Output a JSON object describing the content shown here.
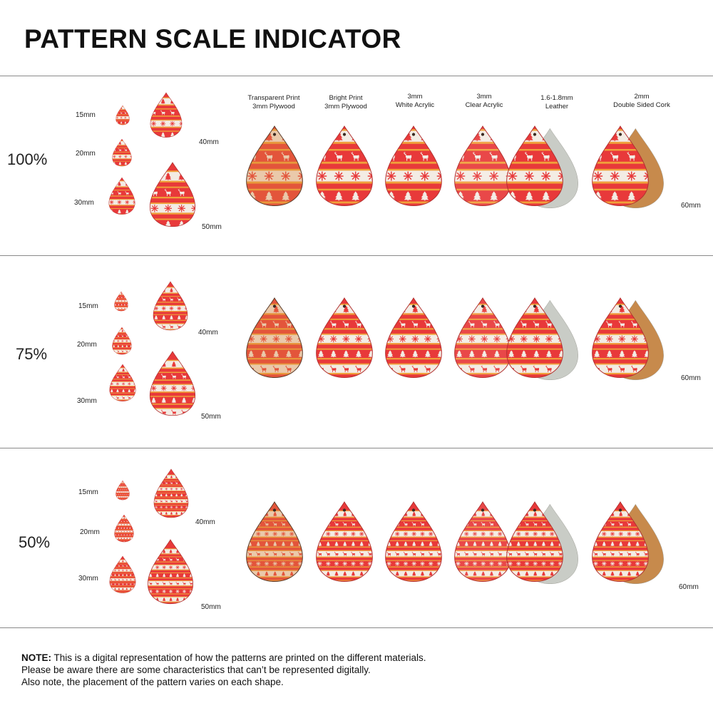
{
  "title": "PATTERN SCALE INDICATOR",
  "rows": [
    {
      "scale": "100%",
      "size_labels": [
        "15mm",
        "20mm",
        "30mm",
        "40mm",
        "50mm"
      ],
      "large_label": "60mm"
    },
    {
      "scale": "75%",
      "size_labels": [
        "15mm",
        "20mm",
        "30mm",
        "40mm",
        "50mm"
      ],
      "large_label": "60mm"
    },
    {
      "scale": "50%",
      "size_labels": [
        "15mm",
        "20mm",
        "30mm",
        "40mm",
        "50mm"
      ],
      "large_label": "60mm"
    }
  ],
  "materials": [
    {
      "line1": "Transparent Print",
      "line2": "3mm Plywood"
    },
    {
      "line1": "Bright Print",
      "line2": "3mm Plywood"
    },
    {
      "line1": "3mm",
      "line2": "White Acrylic"
    },
    {
      "line1": "3mm",
      "line2": "Clear Acrylic"
    },
    {
      "line1": "1.6-1.8mm",
      "line2": "Leather"
    },
    {
      "line1": "2mm",
      "line2": "Double Sided Cork"
    }
  ],
  "note": {
    "label": "NOTE:",
    "line1": " This is a digital representation of how the patterns are printed on the different materials.",
    "line2": "Please be aware there are some characteristics that can’t be represented digitally.",
    "line3": "Also note, the placement of the pattern varies on each shape."
  },
  "colors": {
    "red": "#e8393a",
    "orange": "#f0a13a",
    "cream": "#f3ece4",
    "leather": "#c9ccc6",
    "cork": "#c78a4c",
    "divider": "#8a8a8a"
  },
  "icons": [
    "teardrop-earring-icon",
    "christmas-tree-icon",
    "reindeer-icon",
    "snowflake-icon"
  ]
}
